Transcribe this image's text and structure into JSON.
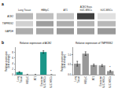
{
  "chart_data": [
    {
      "type": "heatmap",
      "x": [
        "Lung Tissue",
        "HBEpC",
        "AT1",
        "ACE2 Exos\nhUC-MSCs",
        "hUC-MSCs"
      ],
      "y": [
        "ACE2",
        "TMPRSS2",
        "GAPDH"
      ],
      "cells": [
        [
          0.72,
          0.75,
          0.78,
          0.25,
          0.88
        ],
        [
          0.82,
          0.62,
          0.68,
          0.7,
          0.72
        ],
        [
          0.68,
          0.65,
          0.6,
          0.62,
          0.6
        ]
      ],
      "zlim": [
        0,
        1
      ],
      "annotations": [
        {
          "text": "a"
        }
      ]
    },
    {
      "type": "bar",
      "title": "Relative expression of ACE2",
      "ylabel": "Relative expression\n(fold change)",
      "categories": [
        "Lung\nTissue",
        "HBEpC",
        "AT1",
        "Exosome\nhUC-MSCs",
        "hUC-MSCs"
      ],
      "values": [
        1.0,
        0.08,
        0.06,
        8.2,
        0.04
      ],
      "errors": [
        0.15,
        0.02,
        0.01,
        0.45,
        0.01
      ],
      "color": "#1a9688",
      "ylim": [
        0,
        9.8
      ],
      "yticks": [
        0,
        2,
        4,
        6,
        8
      ],
      "grid": false,
      "annotations": [
        {
          "text": "b"
        },
        {
          "x": 4,
          "text": "*"
        }
      ]
    },
    {
      "type": "bar",
      "title": "Relative expression of TMPRSS2",
      "ylabel": "Relative expression\n(fold change)",
      "categories": [
        "Lung\nTissue",
        "HBEpC",
        "AT1",
        "Exosome\nhUC-MSCs",
        "hUC-MSCs"
      ],
      "values": [
        0.55,
        1.05,
        0.48,
        0.46,
        0.18
      ],
      "errors": [
        0.12,
        0.09,
        0.05,
        0.05,
        0.04
      ],
      "color": "#999999",
      "ylim": [
        0,
        1.35
      ],
      "yticks": [
        {
          "value": 0,
          "label": "0.0"
        },
        0.5,
        {
          "value": 1,
          "label": "1.0"
        }
      ],
      "grid": false,
      "annotations": [
        {
          "x": 4,
          "text": "*"
        }
      ]
    }
  ]
}
